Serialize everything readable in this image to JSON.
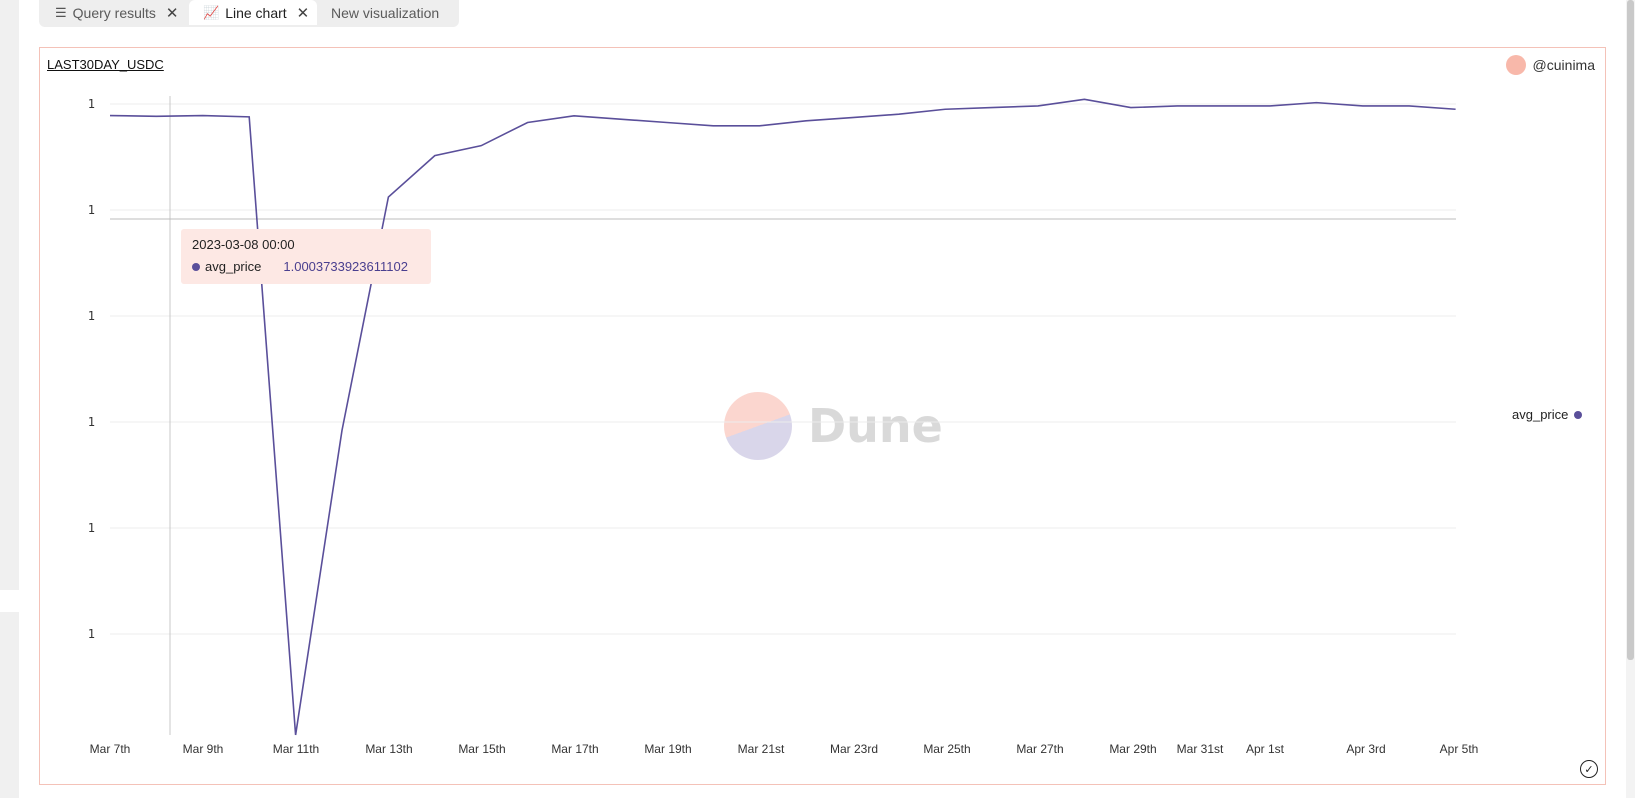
{
  "tabs": [
    {
      "label": "Query results",
      "icon": "list-icon",
      "closable": true,
      "active": false
    },
    {
      "label": "Line chart",
      "icon": "line-chart-icon",
      "closable": true,
      "active": true
    },
    {
      "label": "New visualization",
      "icon": "",
      "closable": false,
      "active": false
    }
  ],
  "chart": {
    "title": "LAST30DAY_USDC",
    "author": "@cuinima",
    "watermark": "Dune"
  },
  "tooltip": {
    "date": "2023-03-08 00:00",
    "series": "avg_price",
    "value": "1.0003733923611102"
  },
  "legend": {
    "label": "avg_price"
  },
  "colors": {
    "line": "#5a4f9a",
    "frame": "#f4c2b8",
    "tooltip_bg": "#fde8e4"
  },
  "chart_data": {
    "type": "line",
    "x_tick_labels": [
      "Mar 7th",
      "Mar 9th",
      "Mar 11th",
      "Mar 13th",
      "Mar 15th",
      "Mar 17th",
      "Mar 19th",
      "Mar 21st",
      "Mar 23rd",
      "Mar 25th",
      "Mar 27th",
      "Mar 29th",
      "Mar 31st",
      "Apr 1st",
      "Apr 3rd",
      "Apr 5th"
    ],
    "y_tick_labels": [
      "1",
      "1",
      "1",
      "1",
      "1",
      "1"
    ],
    "x": [
      "2023-03-07",
      "2023-03-08",
      "2023-03-09",
      "2023-03-10",
      "2023-03-11",
      "2023-03-12",
      "2023-03-13",
      "2023-03-14",
      "2023-03-15",
      "2023-03-16",
      "2023-03-17",
      "2023-03-18",
      "2023-03-19",
      "2023-03-20",
      "2023-03-21",
      "2023-03-22",
      "2023-03-23",
      "2023-03-24",
      "2023-03-25",
      "2023-03-26",
      "2023-03-27",
      "2023-03-28",
      "2023-03-29",
      "2023-03-30",
      "2023-03-31",
      "2023-04-01",
      "2023-04-02",
      "2023-04-03",
      "2023-04-04",
      "2023-04-05"
    ],
    "series": [
      {
        "name": "avg_price",
        "values": [
          1.00042,
          1.00037,
          1.00042,
          1.00034,
          0.963,
          0.9814,
          0.9955,
          0.998,
          0.9986,
          1.0,
          1.0004,
          1.0002,
          1.0,
          0.9998,
          0.9998,
          1.0001,
          1.0003,
          1.0005,
          1.0008,
          1.0009,
          1.001,
          1.0014,
          1.0009,
          1.001,
          1.001,
          1.001,
          1.0012,
          1.001,
          1.001,
          1.0008
        ]
      }
    ],
    "grid": true,
    "legend_position": "right"
  }
}
